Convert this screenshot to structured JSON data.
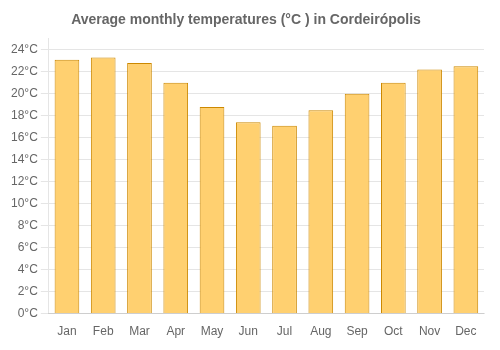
{
  "chart_data": {
    "type": "bar",
    "title": "Average monthly temperatures (°C ) in Cordeirópolis",
    "categories": [
      "Jan",
      "Feb",
      "Mar",
      "Apr",
      "May",
      "Jun",
      "Jul",
      "Aug",
      "Sep",
      "Oct",
      "Nov",
      "Dec"
    ],
    "values": [
      23.1,
      23.3,
      22.8,
      21.0,
      18.8,
      17.4,
      17.1,
      18.5,
      20.0,
      21.0,
      22.2,
      22.5
    ],
    "color": "#FFD070",
    "ylim": [
      0,
      25
    ],
    "yticks": [
      {
        "value": 0,
        "label": "0°C"
      },
      {
        "value": 2,
        "label": "2°C"
      },
      {
        "value": 4,
        "label": "4°C"
      },
      {
        "value": 6,
        "label": "6°C"
      },
      {
        "value": 8,
        "label": "8°C"
      },
      {
        "value": 10,
        "label": "10°C"
      },
      {
        "value": 12,
        "label": "12°C"
      },
      {
        "value": 14,
        "label": "14°C"
      },
      {
        "value": 16,
        "label": "16°C"
      },
      {
        "value": 18,
        "label": "18°C"
      },
      {
        "value": 20,
        "label": "20°C"
      },
      {
        "value": 22,
        "label": "22°C"
      },
      {
        "value": 24,
        "label": "24°C"
      }
    ],
    "grid": true
  }
}
